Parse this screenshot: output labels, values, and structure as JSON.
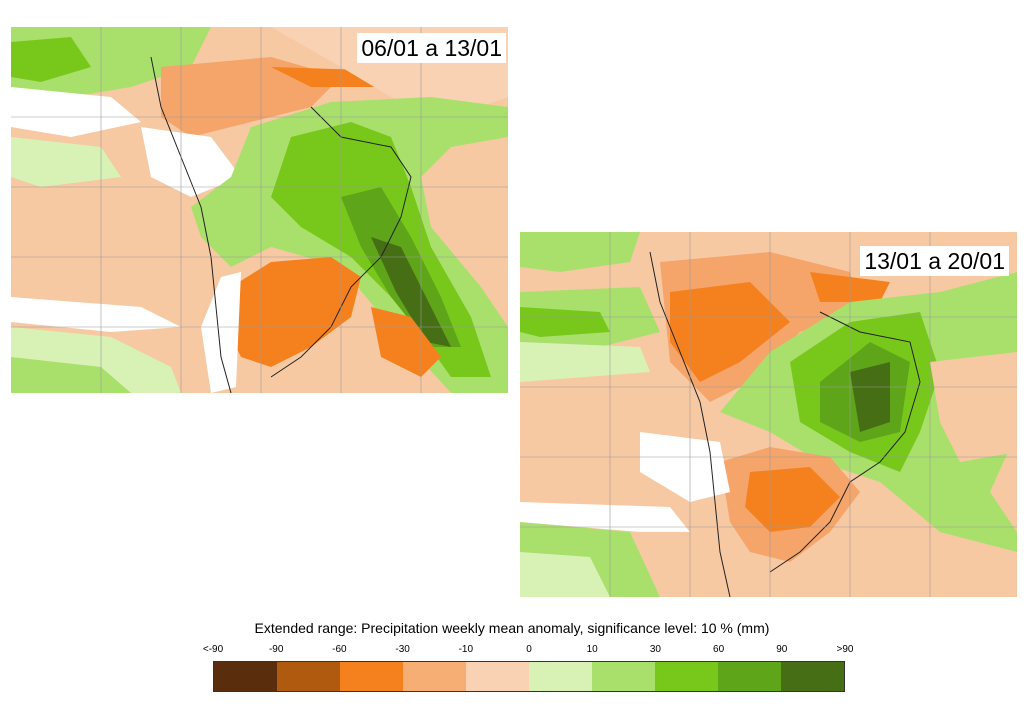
{
  "maps": [
    {
      "label": "06/01 a 13/01"
    },
    {
      "label": "13/01 a 20/01"
    }
  ],
  "legend": {
    "title": "Extended range: Precipitation weekly mean anomaly, significance level: 10 % (mm)",
    "ticks": [
      "<-90",
      "-90",
      "-60",
      "-30",
      "-10",
      "0",
      "10",
      "30",
      "60",
      "90",
      ">90"
    ],
    "colors": [
      "#5a2d0c",
      "#b05a10",
      "#f5811e",
      "#f7ae74",
      "#f9d2b3",
      "#d8f2b6",
      "#a9e06c",
      "#78c81c",
      "#5fa51a",
      "#466e14"
    ]
  },
  "palette": {
    "neutral": "#ffffff",
    "weak_neg": "#f7c9a3",
    "mod_neg": "#f5a46a",
    "strong_neg": "#f5811e",
    "weak_pos": "#d8f2b6",
    "mod_pos": "#a9e06c",
    "strong_pos": "#78c81c",
    "very_pos": "#5fa51a",
    "extreme_pos": "#466e14"
  }
}
